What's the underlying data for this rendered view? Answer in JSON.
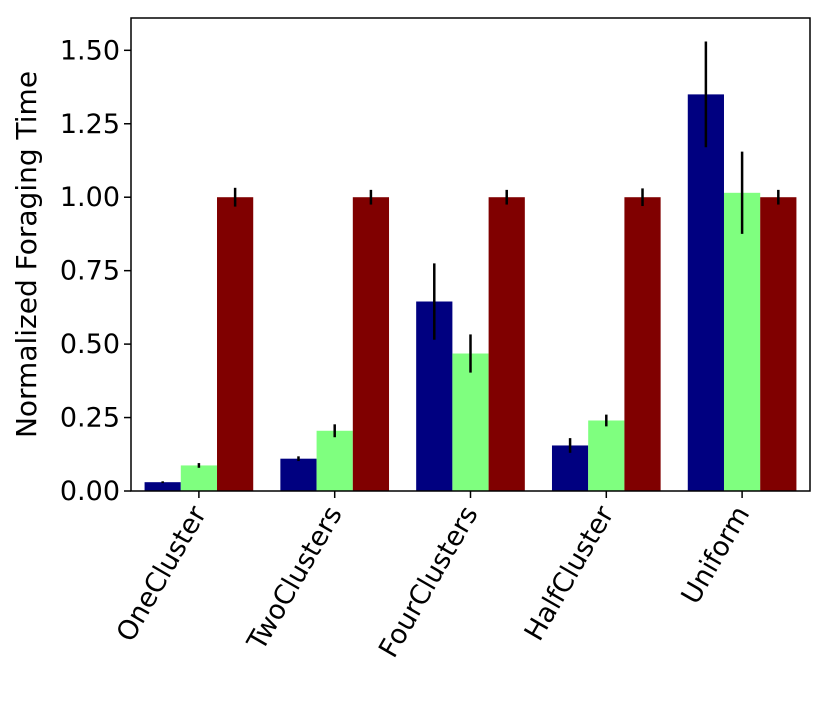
{
  "chart_data": {
    "type": "bar",
    "title": "",
    "xlabel": "",
    "ylabel": "Normalized Foraging Time",
    "categories": [
      "OneCluster",
      "TwoClusters",
      "FourClusters",
      "HalfCluster",
      "Uniform"
    ],
    "ylim": [
      0,
      1.61
    ],
    "yticks": [
      "0.00",
      "0.25",
      "0.50",
      "0.75",
      "1.00",
      "1.25",
      "1.50"
    ],
    "grid": false,
    "legend": "none",
    "series": [
      {
        "color": "#000080",
        "values": [
          0.03,
          0.11,
          0.645,
          0.155,
          1.35
        ],
        "errors": [
          0.003,
          0.008,
          0.13,
          0.025,
          0.18
        ]
      },
      {
        "color": "#7fff7f",
        "values": [
          0.087,
          0.205,
          0.468,
          0.24,
          1.015
        ],
        "errors": [
          0.008,
          0.022,
          0.065,
          0.02,
          0.14
        ]
      },
      {
        "color": "#800000",
        "values": [
          1.0,
          1.0,
          1.0,
          1.0,
          1.0
        ],
        "errors": [
          0.032,
          0.025,
          0.025,
          0.03,
          0.025
        ]
      }
    ]
  }
}
